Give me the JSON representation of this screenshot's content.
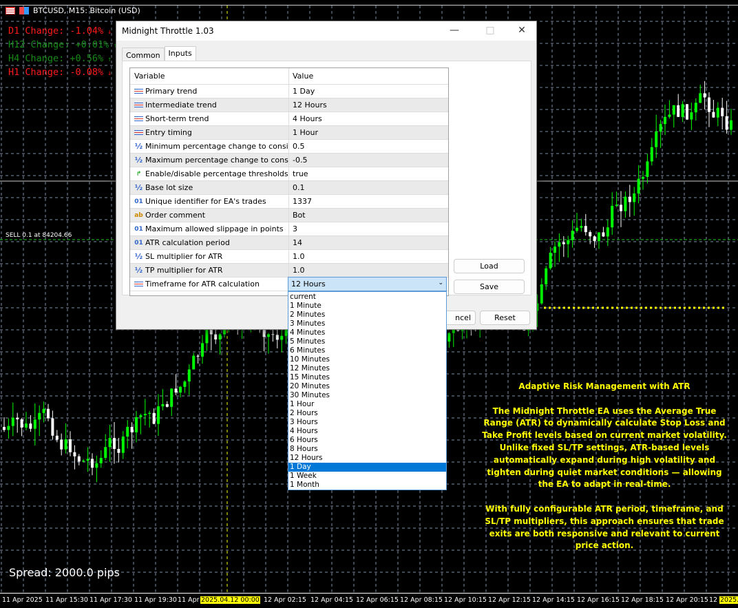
{
  "window": {
    "symbol_title": "BTCUSD, M15:  Bitcoin (USD)"
  },
  "changes": [
    {
      "label": "D1 Change: -1.04%",
      "arrow": "↓",
      "color": "#ff1a1a"
    },
    {
      "label": "H12 Change: +0.01%",
      "arrow": "↑",
      "color": "#148c14"
    },
    {
      "label": "H4 Change: +0.56%",
      "arrow": "↑",
      "color": "#148c14"
    },
    {
      "label": "H1 Change: -0.08%",
      "arrow": "↓",
      "color": "#ff1a1a"
    }
  ],
  "chart": {
    "sell_label": "SELL 0.1 at 84204.66",
    "spread": "Spread: 2000.0 pips",
    "time_labels": [
      "11 Apr 2025",
      "11 Apr 15:30",
      "11 Apr 17:30",
      "11 Apr 19:30",
      "11 Apr 2",
      "2025.04.12 00:00",
      "12 Apr 02:15",
      "12 Apr 04:15",
      "12 Apr 06:15",
      "12 Apr 08:15",
      "12 Apr 10:15",
      "12 Apr 12:15",
      "12 Apr 14:15",
      "12 Apr 16:15",
      "12 Apr 18:15",
      "12 Apr 20:15",
      "12 A",
      "2025.0"
    ],
    "colors": {
      "bull": "#00ff00",
      "bear": "#ffffff",
      "grid": "#7f8fa6",
      "level": "#ffff00"
    }
  },
  "dialog": {
    "title": "Midnight Throttle 1.03",
    "tabs": [
      "Common",
      "Inputs"
    ],
    "active_tab": "Inputs",
    "columns": [
      "Variable",
      "Value"
    ],
    "rows": [
      {
        "icon": "enum",
        "name": "Primary trend",
        "value": "1 Day"
      },
      {
        "icon": "enum",
        "name": "Intermediate trend",
        "value": "12 Hours"
      },
      {
        "icon": "enum",
        "name": "Short-term trend",
        "value": "4 Hours"
      },
      {
        "icon": "enum",
        "name": "Entry timing",
        "value": "1 Hour"
      },
      {
        "icon": "double",
        "name": "Minimum percentage change to consider...",
        "value": "0.5"
      },
      {
        "icon": "double",
        "name": "Maximum percentage change to conside...",
        "value": "-0.5"
      },
      {
        "icon": "bool",
        "name": "Enable/disable percentage thresholds",
        "value": "true"
      },
      {
        "icon": "double",
        "name": "Base lot size",
        "value": "0.1"
      },
      {
        "icon": "int",
        "name": "Unique identifier for EA's trades",
        "value": "1337"
      },
      {
        "icon": "string",
        "name": "Order comment",
        "value": "Bot"
      },
      {
        "icon": "int",
        "name": "Maximum allowed slippage in points",
        "value": "3"
      },
      {
        "icon": "int",
        "name": "ATR calculation period",
        "value": "14"
      },
      {
        "icon": "double",
        "name": "SL multiplier for ATR",
        "value": "1.0"
      },
      {
        "icon": "double",
        "name": "TP multiplier for ATR",
        "value": "1.0"
      },
      {
        "icon": "enum",
        "name": "Timeframe for ATR calculation",
        "value": "12 Hours"
      }
    ],
    "dropdown_options": [
      "current",
      "1 Minute",
      "2 Minutes",
      "3 Minutes",
      "4 Minutes",
      "5 Minutes",
      "6 Minutes",
      "10 Minutes",
      "12 Minutes",
      "15 Minutes",
      "20 Minutes",
      "30 Minutes",
      "1 Hour",
      "2 Hours",
      "3 Hours",
      "4 Hours",
      "6 Hours",
      "8 Hours",
      "12 Hours",
      "1 Day",
      "1 Week",
      "1 Month"
    ],
    "dropdown_highlighted": "1 Day",
    "buttons": {
      "load": "Load",
      "save": "Save",
      "cancel": "ncel",
      "reset": "Reset"
    }
  },
  "info": {
    "heading": "Adaptive Risk Management with ATR",
    "p1": "The Midnight Throttle EA uses the Average True Range (ATR) to dynamically calculate Stop Loss and Take Profit levels based on current market volatility. Unlike fixed SL/TP settings, ATR-based levels automatically expand during high volatility and tighten during quiet market conditions — allowing the EA to adapt in real-time.",
    "p2": "With fully configurable ATR period, timeframe, and SL/TP multipliers, this approach ensures that trade exits are both responsive and relevant to current price action."
  }
}
